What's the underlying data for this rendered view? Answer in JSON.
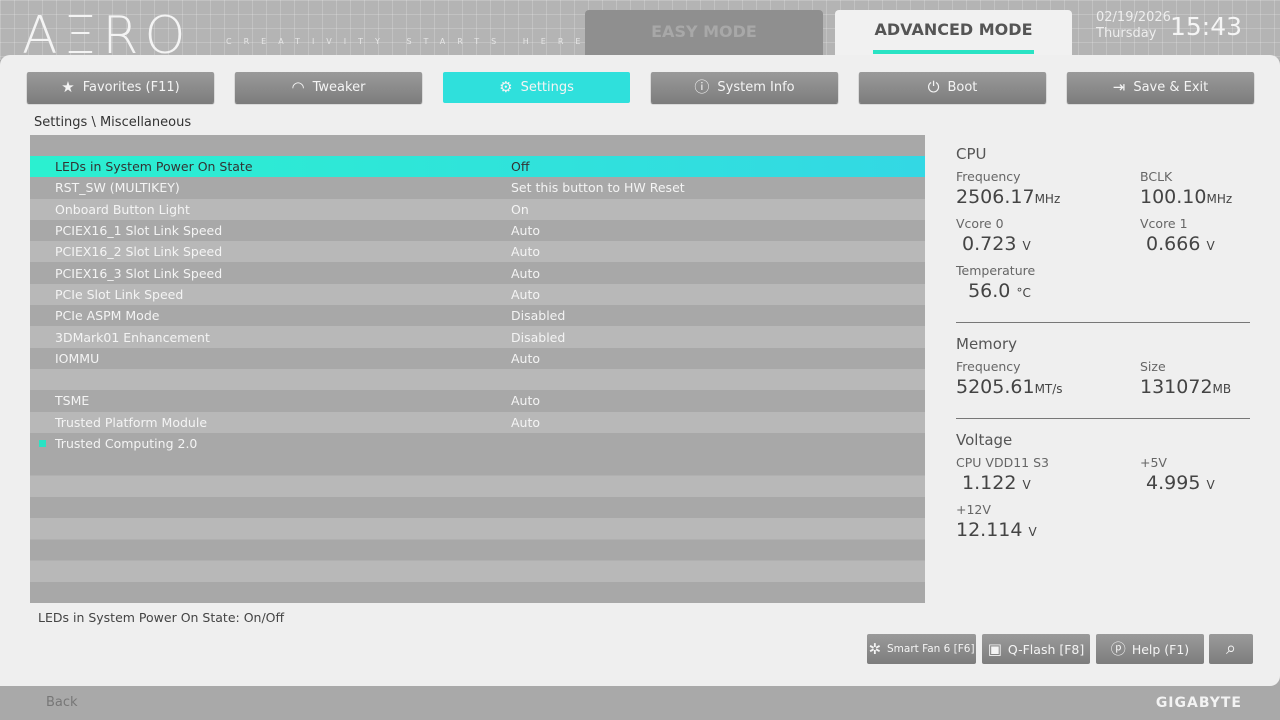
{
  "header": {
    "logo": "AΞRO",
    "slogan": "CREATIVITY STARTS HERE.",
    "easy_mode": "EASY MODE",
    "advanced_mode": "ADVANCED MODE",
    "date": "02/19/2026",
    "day": "Thursday",
    "time": "15:43"
  },
  "tabs": [
    {
      "label": "Favorites (F11)",
      "icon": "★"
    },
    {
      "label": "Tweaker",
      "icon": "◠"
    },
    {
      "label": "Settings",
      "icon": "⚙"
    },
    {
      "label": "System Info",
      "icon": "ⓘ"
    },
    {
      "label": "Boot",
      "icon": "⏻"
    },
    {
      "label": "Save & Exit",
      "icon": "⇥"
    }
  ],
  "breadcrumb": "Settings \\ Miscellaneous",
  "rows": [
    {
      "name": "LEDs in System Power On State",
      "value": "Off"
    },
    {
      "name": "RST_SW (MULTIKEY)",
      "value": "Set this button to HW Reset"
    },
    {
      "name": "Onboard Button Light",
      "value": "On"
    },
    {
      "name": "PCIEX16_1 Slot Link Speed",
      "value": "Auto"
    },
    {
      "name": "PCIEX16_2 Slot Link Speed",
      "value": "Auto"
    },
    {
      "name": "PCIEX16_3 Slot Link Speed",
      "value": "Auto"
    },
    {
      "name": "PCIe Slot Link Speed",
      "value": "Auto"
    },
    {
      "name": "PCIe ASPM Mode",
      "value": "Disabled"
    },
    {
      "name": "3DMark01 Enhancement",
      "value": "Disabled"
    },
    {
      "name": "IOMMU",
      "value": "Auto"
    },
    {
      "name": "",
      "value": ""
    },
    {
      "name": "TSME",
      "value": "Auto"
    },
    {
      "name": "Trusted Platform Module",
      "value": "Auto"
    },
    {
      "name": "Trusted Computing 2.0",
      "value": ""
    }
  ],
  "help_text": "LEDs in System Power On State: On/Off",
  "cpu": {
    "title": "CPU",
    "freq_label": "Frequency",
    "freq": "2506.17",
    "freq_unit": "MHz",
    "bclk_label": "BCLK",
    "bclk": "100.10",
    "bclk_unit": "MHz",
    "vcore0_label": "Vcore 0",
    "vcore0": "0.723",
    "vcore1_label": "Vcore 1",
    "vcore1": "0.666",
    "v": "V",
    "temp_label": "Temperature",
    "temp": "56.0",
    "temp_unit": "°C"
  },
  "memory": {
    "title": "Memory",
    "freq_label": "Frequency",
    "freq": "5205.61",
    "freq_unit": "MT/s",
    "size_label": "Size",
    "size": "131072",
    "size_unit": "MB"
  },
  "voltage": {
    "title": "Voltage",
    "a_label": "CPU VDD11 S3",
    "a": "1.122",
    "b_label": "+5V",
    "b": "4.995",
    "c_label": "+12V",
    "c": "12.114",
    "v": "V"
  },
  "buttons": {
    "smartfan": "Smart Fan 6 [F6]",
    "qflash": "Q-Flash [F8]",
    "help": "Help (F1)"
  },
  "footer": {
    "back": "Back",
    "brand": "GIGABYTE"
  },
  "colors": {
    "accent": "#2ae3c4"
  }
}
